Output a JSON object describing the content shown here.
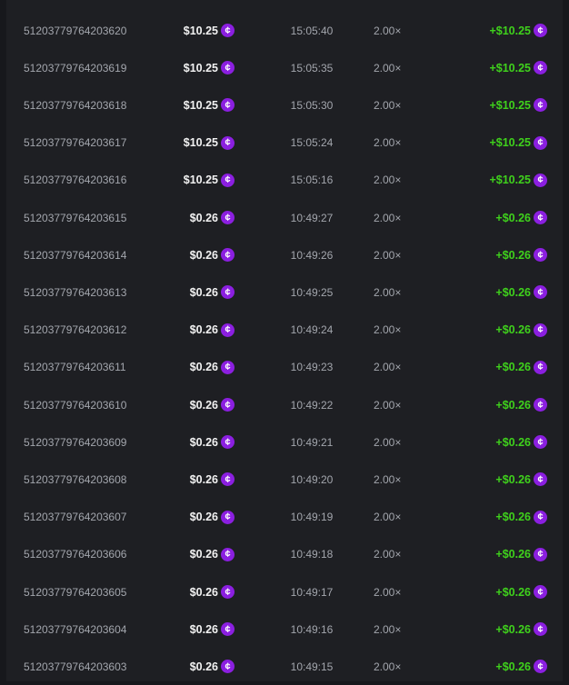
{
  "currency_icon": "cent-coin-icon",
  "colors": {
    "coin": "#8b1fe0",
    "payout": "#3fd11c"
  },
  "rows": [
    {
      "id": "51203779764203620",
      "amount": "$10.25",
      "time": "15:05:40",
      "multiplier": "2.00×",
      "payout": "+$10.25"
    },
    {
      "id": "51203779764203619",
      "amount": "$10.25",
      "time": "15:05:35",
      "multiplier": "2.00×",
      "payout": "+$10.25"
    },
    {
      "id": "51203779764203618",
      "amount": "$10.25",
      "time": "15:05:30",
      "multiplier": "2.00×",
      "payout": "+$10.25"
    },
    {
      "id": "51203779764203617",
      "amount": "$10.25",
      "time": "15:05:24",
      "multiplier": "2.00×",
      "payout": "+$10.25"
    },
    {
      "id": "51203779764203616",
      "amount": "$10.25",
      "time": "15:05:16",
      "multiplier": "2.00×",
      "payout": "+$10.25"
    },
    {
      "id": "51203779764203615",
      "amount": "$0.26",
      "time": "10:49:27",
      "multiplier": "2.00×",
      "payout": "+$0.26"
    },
    {
      "id": "51203779764203614",
      "amount": "$0.26",
      "time": "10:49:26",
      "multiplier": "2.00×",
      "payout": "+$0.26"
    },
    {
      "id": "51203779764203613",
      "amount": "$0.26",
      "time": "10:49:25",
      "multiplier": "2.00×",
      "payout": "+$0.26"
    },
    {
      "id": "51203779764203612",
      "amount": "$0.26",
      "time": "10:49:24",
      "multiplier": "2.00×",
      "payout": "+$0.26"
    },
    {
      "id": "51203779764203611",
      "amount": "$0.26",
      "time": "10:49:23",
      "multiplier": "2.00×",
      "payout": "+$0.26"
    },
    {
      "id": "51203779764203610",
      "amount": "$0.26",
      "time": "10:49:22",
      "multiplier": "2.00×",
      "payout": "+$0.26"
    },
    {
      "id": "51203779764203609",
      "amount": "$0.26",
      "time": "10:49:21",
      "multiplier": "2.00×",
      "payout": "+$0.26"
    },
    {
      "id": "51203779764203608",
      "amount": "$0.26",
      "time": "10:49:20",
      "multiplier": "2.00×",
      "payout": "+$0.26"
    },
    {
      "id": "51203779764203607",
      "amount": "$0.26",
      "time": "10:49:19",
      "multiplier": "2.00×",
      "payout": "+$0.26"
    },
    {
      "id": "51203779764203606",
      "amount": "$0.26",
      "time": "10:49:18",
      "multiplier": "2.00×",
      "payout": "+$0.26"
    },
    {
      "id": "51203779764203605",
      "amount": "$0.26",
      "time": "10:49:17",
      "multiplier": "2.00×",
      "payout": "+$0.26"
    },
    {
      "id": "51203779764203604",
      "amount": "$0.26",
      "time": "10:49:16",
      "multiplier": "2.00×",
      "payout": "+$0.26"
    },
    {
      "id": "51203779764203603",
      "amount": "$0.26",
      "time": "10:49:15",
      "multiplier": "2.00×",
      "payout": "+$0.26"
    }
  ]
}
